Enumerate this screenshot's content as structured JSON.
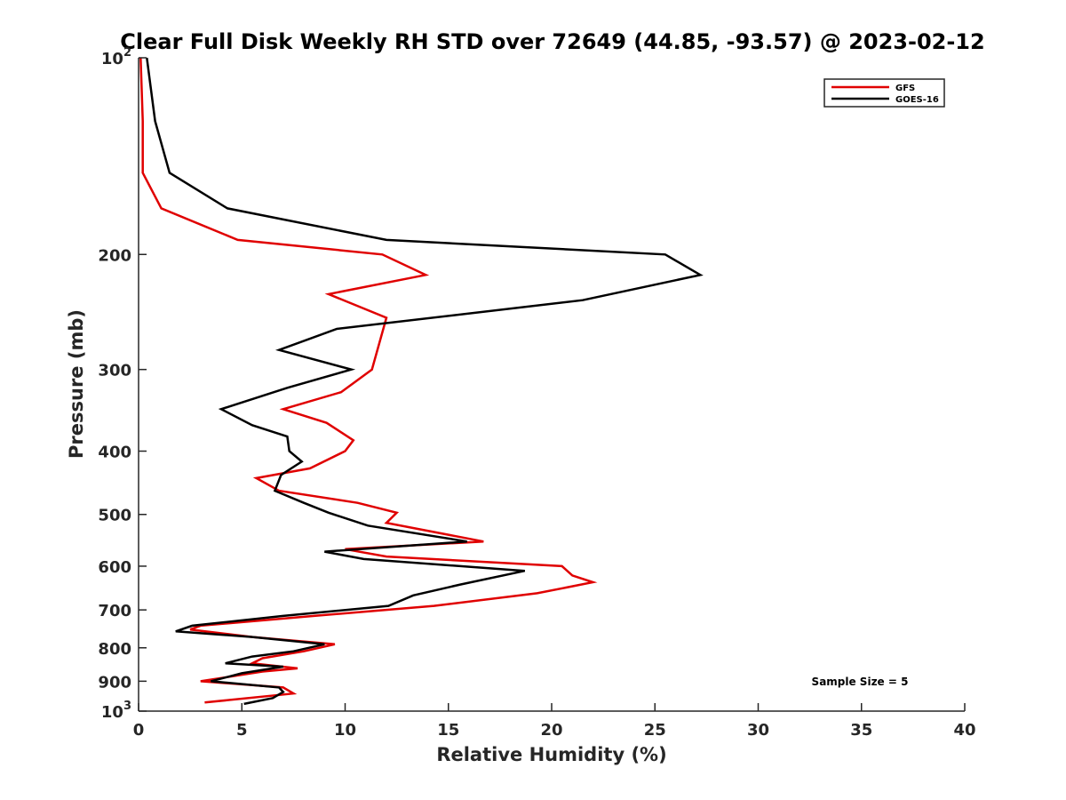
{
  "chart_data": {
    "type": "line",
    "title": "Clear Full Disk Weekly RH STD over 72649 (44.85, -93.57) @ 2023-02-12",
    "xlabel": "Relative Humidity (%)",
    "ylabel": "Pressure (mb)",
    "xlim": [
      0,
      40
    ],
    "ylim": [
      100,
      1000
    ],
    "y_scale": "log",
    "y_reversed": true,
    "grid": false,
    "legend_position": "top-right",
    "x_ticks": [
      0,
      5,
      10,
      15,
      20,
      25,
      30,
      35,
      40
    ],
    "x_tick_labels": [
      "0",
      "5",
      "10",
      "15",
      "20",
      "25",
      "30",
      "35",
      "40"
    ],
    "y_ticks": [
      100,
      200,
      300,
      400,
      500,
      600,
      700,
      800,
      900,
      1000
    ],
    "y_tick_labels": [
      {
        "text": "10",
        "sup": "2"
      },
      {
        "text": "200",
        "sup": ""
      },
      {
        "text": "300",
        "sup": ""
      },
      {
        "text": "400",
        "sup": ""
      },
      {
        "text": "500",
        "sup": ""
      },
      {
        "text": "600",
        "sup": ""
      },
      {
        "text": "700",
        "sup": ""
      },
      {
        "text": "800",
        "sup": ""
      },
      {
        "text": "900",
        "sup": ""
      },
      {
        "text": "10",
        "sup": "3"
      }
    ],
    "annotation": "Sample Size = 5",
    "series": [
      {
        "name": "GFS",
        "color": "#e00000",
        "points": [
          [
            0.1,
            100
          ],
          [
            0.2,
            125
          ],
          [
            0.2,
            150
          ],
          [
            1.1,
            170
          ],
          [
            4.8,
            190
          ],
          [
            11.8,
            200
          ],
          [
            13.9,
            215
          ],
          [
            9.2,
            230
          ],
          [
            12.0,
            250
          ],
          [
            11.3,
            300
          ],
          [
            9.8,
            325
          ],
          [
            7.0,
            345
          ],
          [
            9.1,
            362
          ],
          [
            10.4,
            385
          ],
          [
            10.0,
            400
          ],
          [
            8.3,
            425
          ],
          [
            5.7,
            440
          ],
          [
            6.8,
            460
          ],
          [
            10.6,
            480
          ],
          [
            12.5,
            497
          ],
          [
            12.0,
            515
          ],
          [
            16.7,
            550
          ],
          [
            10.0,
            565
          ],
          [
            12.0,
            580
          ],
          [
            20.5,
            600
          ],
          [
            21.0,
            620
          ],
          [
            22.0,
            635
          ],
          [
            19.3,
            660
          ],
          [
            14.3,
            690
          ],
          [
            8.5,
            715
          ],
          [
            3.0,
            740
          ],
          [
            2.5,
            750
          ],
          [
            5.5,
            770
          ],
          [
            9.5,
            790
          ],
          [
            8.0,
            810
          ],
          [
            6.0,
            830
          ],
          [
            5.5,
            845
          ],
          [
            7.7,
            860
          ],
          [
            6.0,
            870
          ],
          [
            3.0,
            900
          ],
          [
            7.0,
            920
          ],
          [
            7.5,
            940
          ],
          [
            3.2,
            970
          ]
        ]
      },
      {
        "name": "GOES-16",
        "color": "#000000",
        "points": [
          [
            0.4,
            100
          ],
          [
            0.8,
            125
          ],
          [
            1.5,
            150
          ],
          [
            4.3,
            170
          ],
          [
            12.0,
            190
          ],
          [
            25.5,
            200
          ],
          [
            27.2,
            215
          ],
          [
            21.5,
            235
          ],
          [
            9.6,
            260
          ],
          [
            6.8,
            280
          ],
          [
            10.3,
            300
          ],
          [
            7.2,
            320
          ],
          [
            4.0,
            345
          ],
          [
            5.5,
            365
          ],
          [
            7.2,
            380
          ],
          [
            7.3,
            400
          ],
          [
            7.9,
            415
          ],
          [
            6.9,
            435
          ],
          [
            6.6,
            460
          ],
          [
            8.0,
            480
          ],
          [
            9.2,
            497
          ],
          [
            11.1,
            520
          ],
          [
            15.9,
            550
          ],
          [
            9.0,
            570
          ],
          [
            10.9,
            585
          ],
          [
            18.7,
            610
          ],
          [
            15.6,
            640
          ],
          [
            13.3,
            665
          ],
          [
            12.1,
            690
          ],
          [
            7.0,
            715
          ],
          [
            2.6,
            740
          ],
          [
            1.8,
            755
          ],
          [
            5.5,
            770
          ],
          [
            9.0,
            790
          ],
          [
            7.5,
            810
          ],
          [
            5.5,
            825
          ],
          [
            4.2,
            845
          ],
          [
            7.0,
            855
          ],
          [
            5.0,
            875
          ],
          [
            3.5,
            900
          ],
          [
            6.8,
            920
          ],
          [
            7.0,
            935
          ],
          [
            6.5,
            955
          ],
          [
            5.1,
            975
          ]
        ]
      }
    ]
  }
}
